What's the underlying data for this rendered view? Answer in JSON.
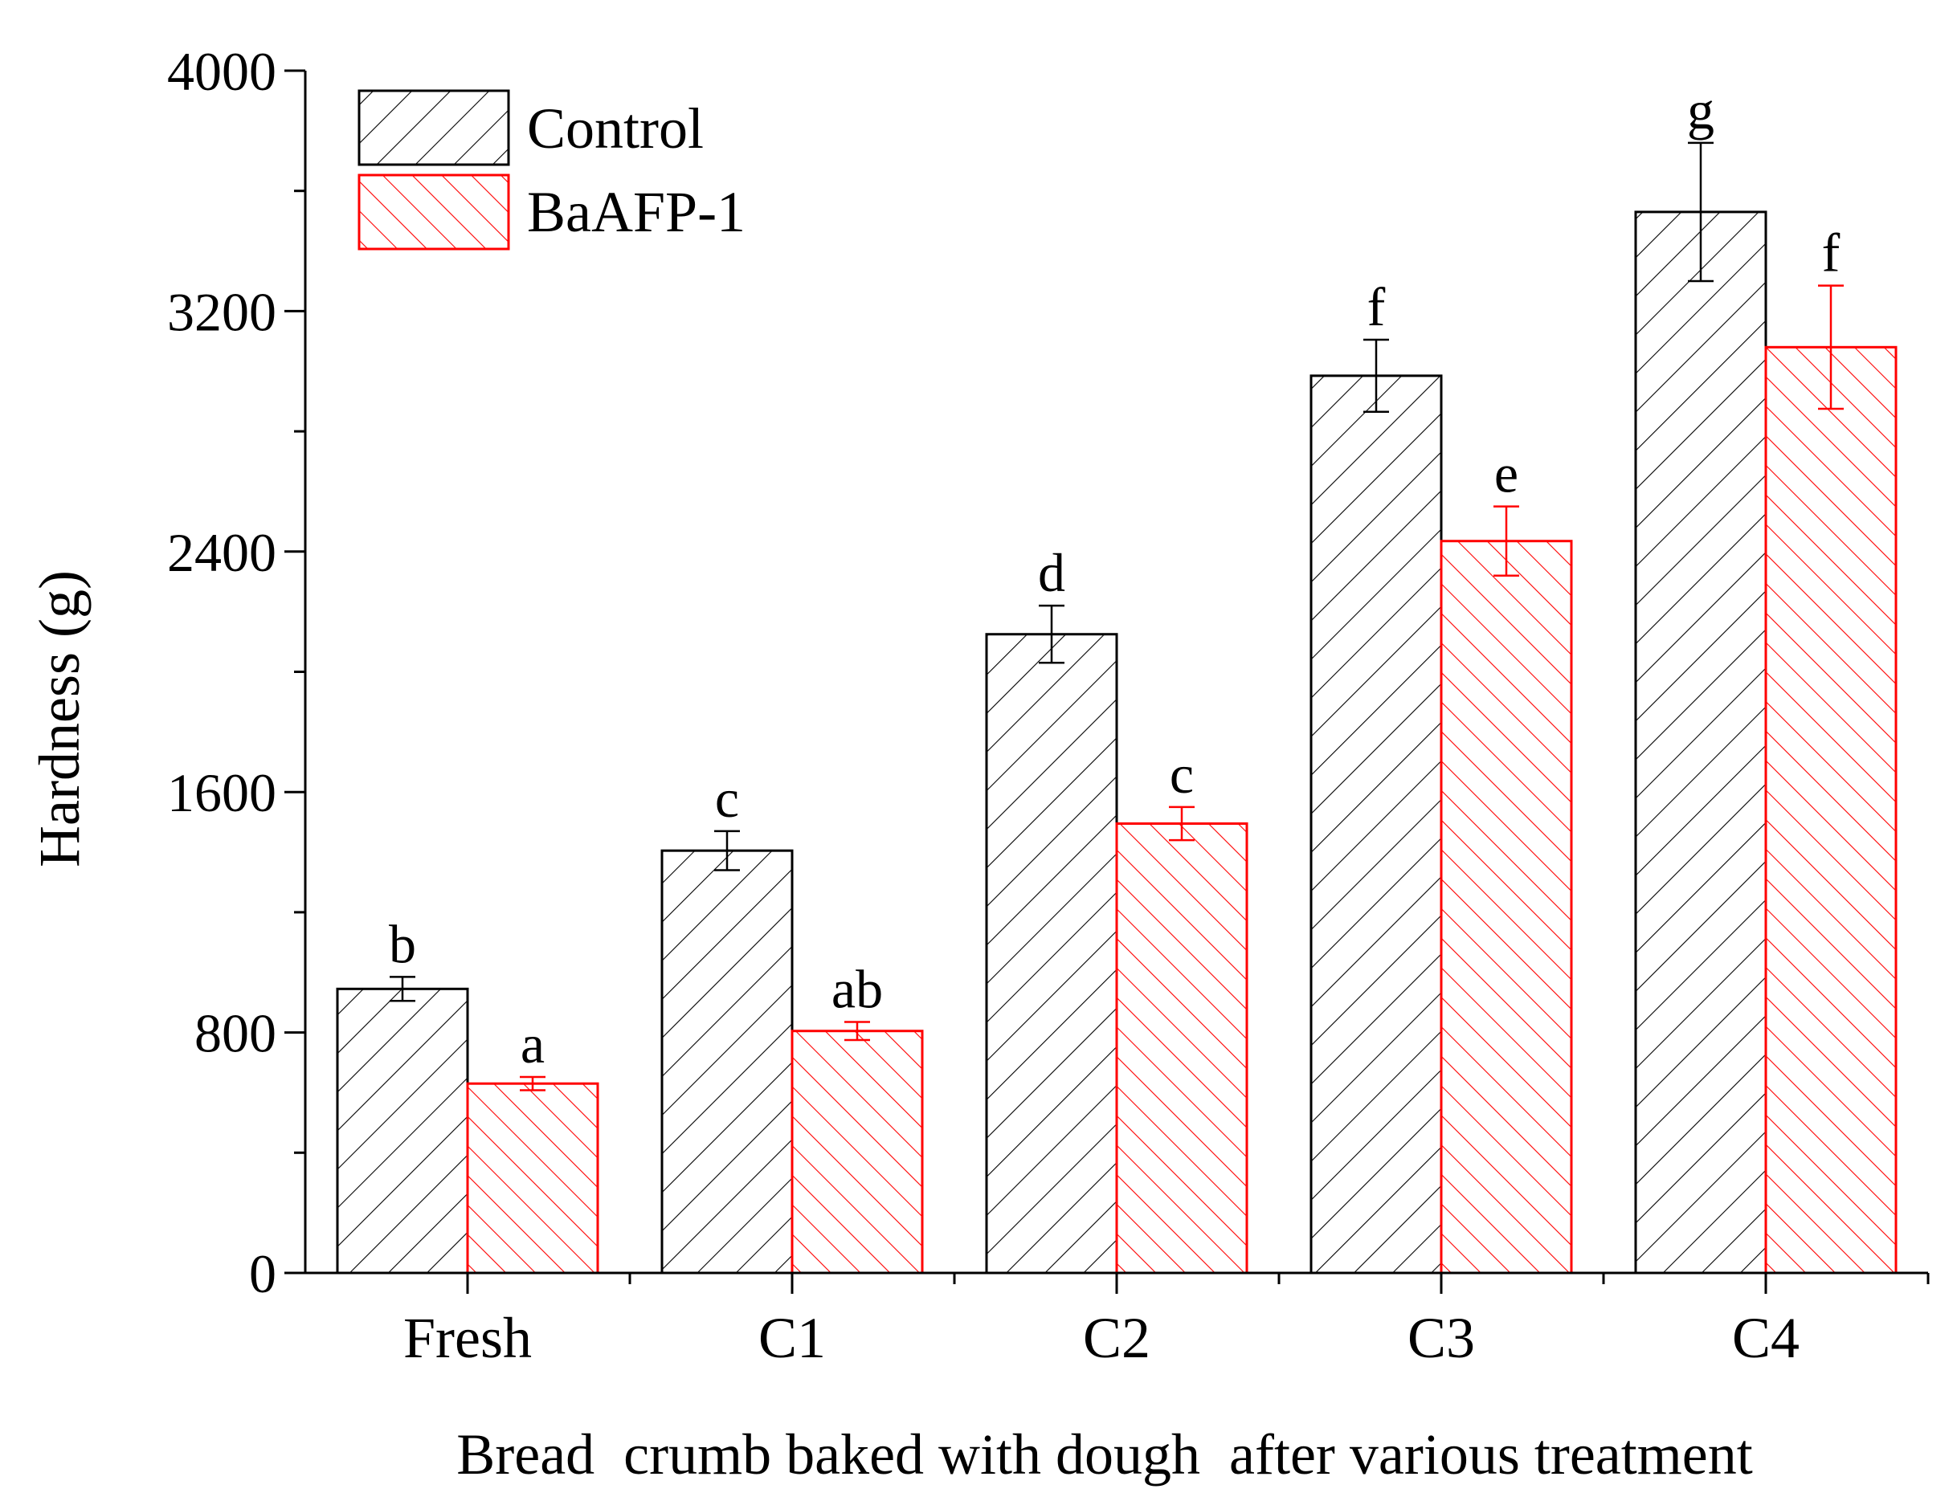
{
  "chart_data": {
    "type": "bar",
    "title": "",
    "xlabel": "Bread  crumb baked with dough  after various treatment",
    "ylabel": "Hardness (g)",
    "ylim": [
      0,
      4000
    ],
    "yticks": [
      "0",
      "800",
      "1600",
      "2400",
      "3200",
      "4000"
    ],
    "categories": [
      "Fresh",
      "C1",
      "C2",
      "C3",
      "C4"
    ],
    "legend_position": "top-left",
    "series": [
      {
        "name": "Control",
        "color": "#000000",
        "hatch": "forward-diagonal",
        "values": [
          945,
          1405,
          2125,
          2985,
          3530
        ],
        "errors": [
          40,
          65,
          95,
          120,
          230
        ],
        "labels": [
          "b",
          "c",
          "d",
          "f",
          "g"
        ]
      },
      {
        "name": "BaAFP-1",
        "color": "#ff0000",
        "hatch": "back-diagonal",
        "values": [
          630,
          805,
          1495,
          2435,
          3080
        ],
        "errors": [
          22,
          30,
          55,
          115,
          205
        ],
        "labels": [
          "a",
          "ab",
          "c",
          "e",
          "f"
        ]
      }
    ]
  }
}
